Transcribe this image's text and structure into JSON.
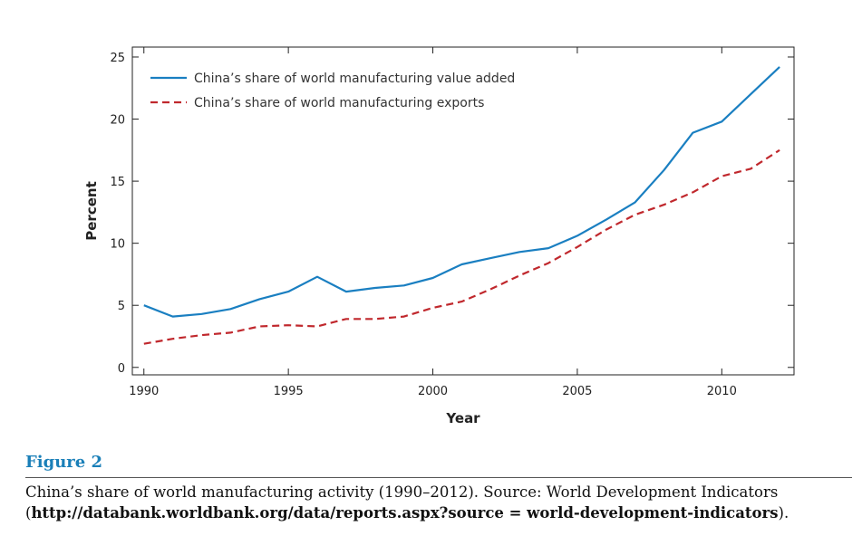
{
  "chart_data": {
    "type": "line",
    "title": "",
    "xlabel": "Year",
    "ylabel": "Percent",
    "xlim": [
      1989.6,
      2012.5
    ],
    "ylim": [
      -0.6,
      25.8
    ],
    "x_ticks": [
      1990,
      1995,
      2000,
      2005,
      2010
    ],
    "y_ticks": [
      0,
      5,
      10,
      15,
      20,
      25
    ],
    "grid": false,
    "legend_position": "top-left",
    "x": [
      1990,
      1991,
      1992,
      1993,
      1994,
      1995,
      1996,
      1997,
      1998,
      1999,
      2000,
      2001,
      2002,
      2003,
      2004,
      2005,
      2006,
      2007,
      2008,
      2009,
      2010,
      2011,
      2012
    ],
    "series": [
      {
        "name": "China’s share of world manufacturing value added",
        "color": "#1a7fc1",
        "style": "solid",
        "values": [
          5.0,
          4.1,
          4.3,
          4.7,
          5.5,
          6.1,
          7.3,
          6.1,
          6.4,
          6.6,
          7.2,
          8.3,
          8.8,
          9.3,
          9.6,
          10.6,
          11.9,
          13.3,
          15.9,
          18.9,
          19.8,
          22.0,
          24.2
        ]
      },
      {
        "name": "China’s share of world manufacturing exports",
        "color": "#c0282d",
        "style": "dashed",
        "values": [
          1.9,
          2.3,
          2.6,
          2.8,
          3.3,
          3.4,
          3.3,
          3.9,
          3.9,
          4.1,
          4.8,
          5.3,
          6.3,
          7.4,
          8.4,
          9.7,
          11.1,
          12.3,
          13.1,
          14.1,
          15.4,
          16.0,
          17.5
        ]
      }
    ]
  },
  "caption": {
    "figure_label": "Figure 2",
    "text": "China’s share of world manufacturing activity (1990–2012). Source: World Development Indicators",
    "url_open": "(",
    "url": "http://databank.worldbank.org/data/reports.aspx?source = world-development-indicators",
    "url_close": ")."
  }
}
